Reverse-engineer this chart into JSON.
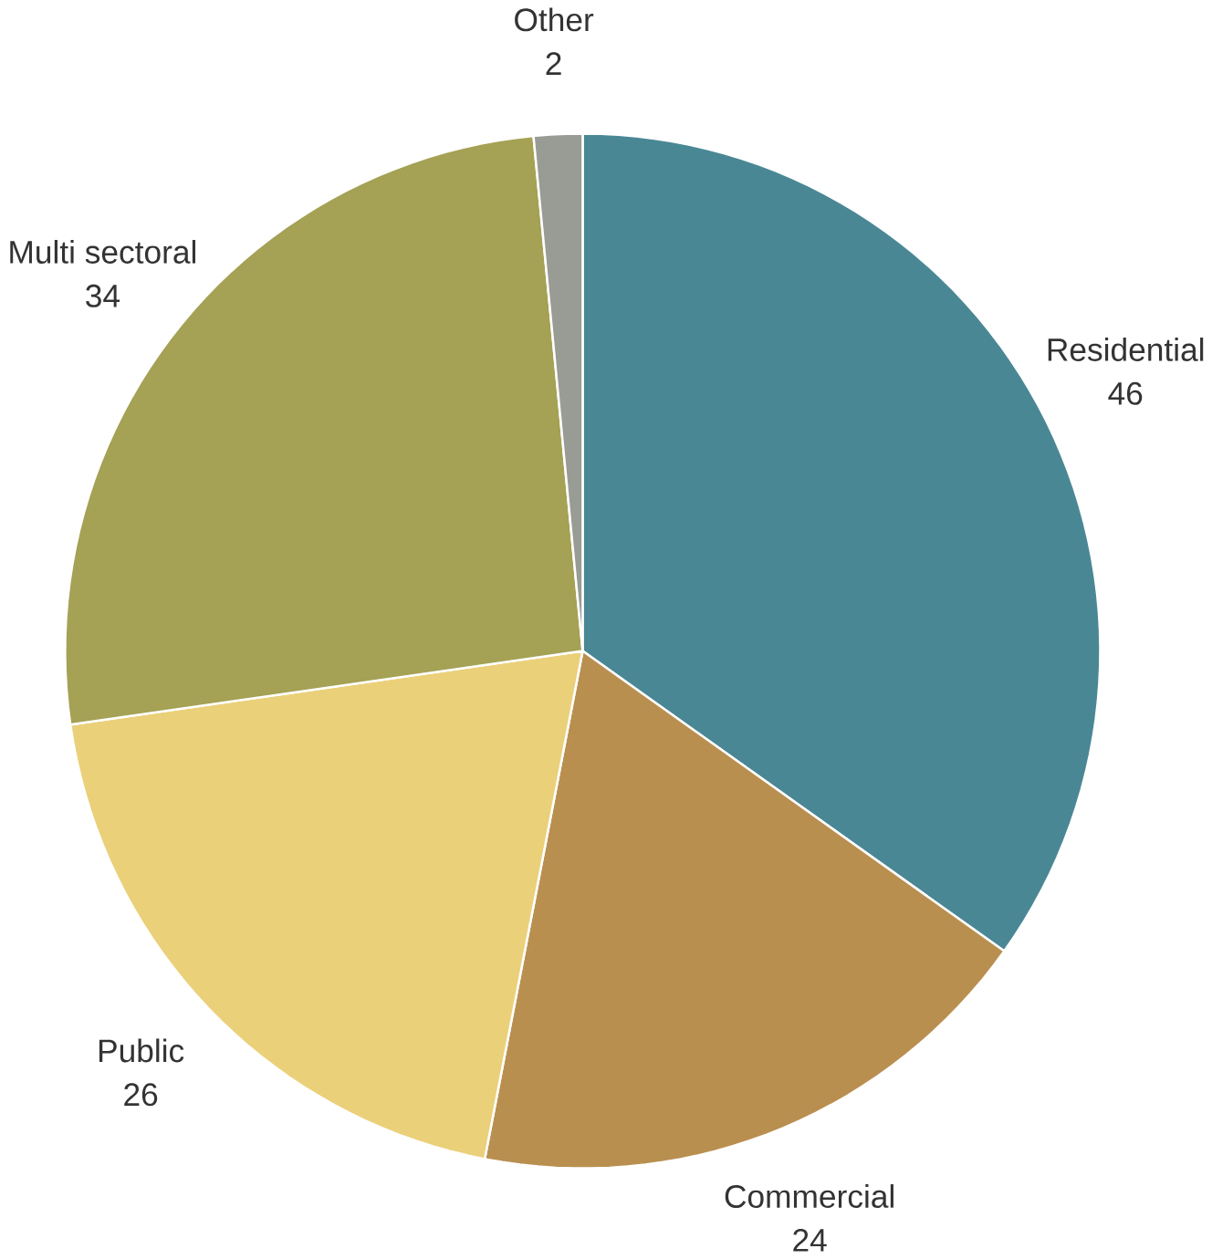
{
  "chart_data": {
    "type": "pie",
    "categories": [
      "Residential",
      "Commercial",
      "Public",
      "Multi sectoral",
      "Other"
    ],
    "values": [
      46,
      24,
      26,
      34,
      2
    ],
    "colors": [
      "#4a8795",
      "#b98f50",
      "#ebd07a",
      "#a5a155",
      "#999c94"
    ],
    "data_labels": true
  }
}
